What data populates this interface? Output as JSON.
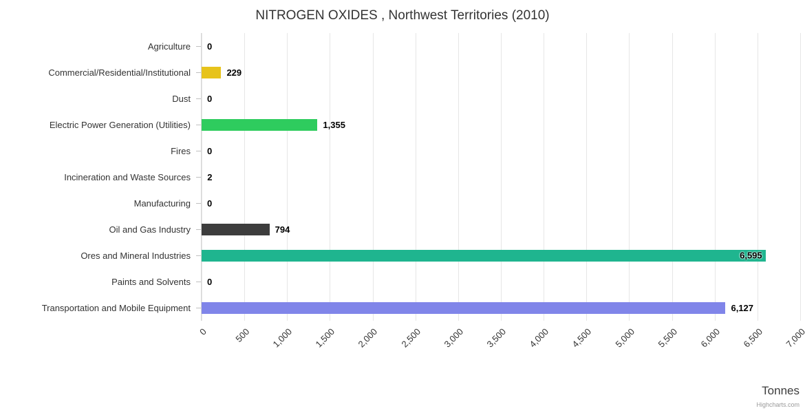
{
  "title": "NITROGEN OXIDES , Northwest Territories (2010)",
  "credit": "Highcharts.com",
  "chart_data": {
    "type": "bar",
    "orientation": "horizontal",
    "title": "NITROGEN OXIDES , Northwest Territories (2010)",
    "xlabel": "Tonnes",
    "ylabel": "",
    "xlim": [
      0,
      7000
    ],
    "tick_interval": 500,
    "grid": true,
    "legend": false,
    "categories": [
      "Agriculture",
      "Commercial/Residential/Institutional",
      "Dust",
      "Electric Power Generation (Utilities)",
      "Fires",
      "Incineration and Waste Sources",
      "Manufacturing",
      "Oil and Gas Industry",
      "Ores and Mineral Industries",
      "Paints and Solvents",
      "Transportation and Mobile Equipment"
    ],
    "values": [
      0,
      229,
      0,
      1355,
      0,
      2,
      0,
      794,
      6595,
      0,
      6127
    ],
    "value_labels": [
      "0",
      "229",
      "0",
      "1,355",
      "0",
      "2",
      "0",
      "794",
      "6,595",
      "0",
      "6,127"
    ],
    "colors": [
      null,
      "#e7c31b",
      null,
      "#2ecc5e",
      null,
      null,
      null,
      "#3d3d3d",
      "#1fb58f",
      null,
      "#8085e9"
    ],
    "tick_labels": [
      "0",
      "500",
      "1,000",
      "1,500",
      "2,000",
      "2,500",
      "3,000",
      "3,500",
      "4,000",
      "4,500",
      "5,000",
      "5,500",
      "6,000",
      "6,500",
      "7,000"
    ],
    "grid_color": "#e6e6e6"
  }
}
